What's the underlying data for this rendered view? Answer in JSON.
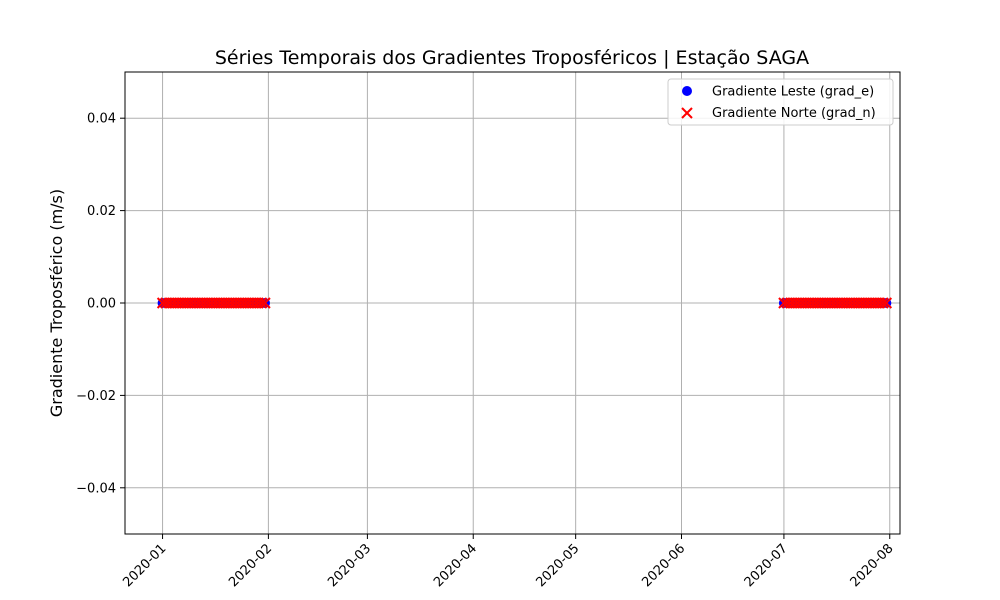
{
  "chart_data": {
    "type": "scatter",
    "title": "Séries Temporais dos Gradientes Troposféricos | Estação SAGA",
    "xlabel": "",
    "ylabel": "Gradiente Troposférico (m/s)",
    "x_type": "date",
    "xlim": [
      "2019-12-21",
      "2020-08-04"
    ],
    "ylim": [
      -0.05,
      0.05
    ],
    "x_ticks": [
      "2020-01",
      "2020-02",
      "2020-03",
      "2020-04",
      "2020-05",
      "2020-06",
      "2020-07",
      "2020-08"
    ],
    "y_ticks": [
      -0.04,
      -0.02,
      0.0,
      0.02,
      0.04
    ],
    "y_tick_labels": [
      "−0.04",
      "−0.02",
      "0.00",
      "0.02",
      "0.04"
    ],
    "grid": true,
    "legend_position": "top-right",
    "series": [
      {
        "name": "Gradiente Leste (grad_e)",
        "marker": "circle",
        "color": "#0000ff",
        "date_ranges": [
          {
            "start": "2020-01-01",
            "end": "2020-01-31",
            "value": 0.0
          },
          {
            "start": "2020-07-01",
            "end": "2020-07-31",
            "value": 0.0
          }
        ]
      },
      {
        "name": "Gradiente Norte (grad_n)",
        "marker": "x",
        "color": "#ff0000",
        "date_ranges": [
          {
            "start": "2020-01-01",
            "end": "2020-01-31",
            "value": 0.0
          },
          {
            "start": "2020-07-01",
            "end": "2020-07-31",
            "value": 0.0
          }
        ]
      }
    ]
  }
}
